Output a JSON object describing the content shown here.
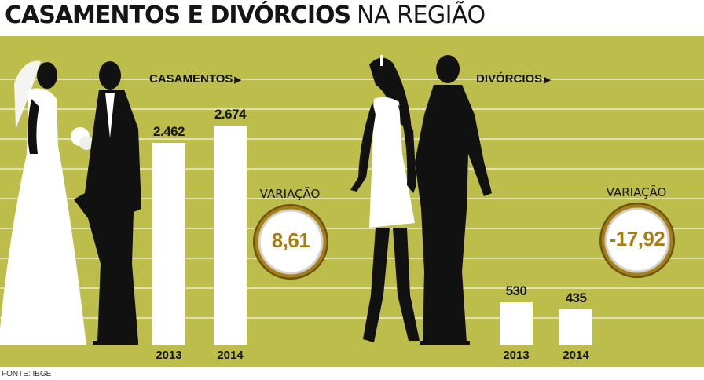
{
  "title": {
    "bold": "CASAMENTOS E DIVÓRCIOS",
    "light": "NA REGIÃO"
  },
  "source": "FONTE: IBGE",
  "colors": {
    "background": "#bcbd4b",
    "bar": "#ffffff",
    "variation_text": "#a67d14",
    "ring": "#a57f1a"
  },
  "chart_data": [
    {
      "type": "bar",
      "title": "CASAMENTOS",
      "categories": [
        "2013",
        "2014"
      ],
      "values": [
        2462,
        2674
      ],
      "value_labels": [
        "2.462",
        "2.674"
      ],
      "variation_label": "VARIAÇÃO",
      "variation": "8,61",
      "grid": true
    },
    {
      "type": "bar",
      "title": "DIVÓRCIOS",
      "categories": [
        "2013",
        "2014"
      ],
      "values": [
        530,
        435
      ],
      "value_labels": [
        "530",
        "435"
      ],
      "variation_label": "VARIAÇÃO",
      "variation": "-17,92",
      "grid": true
    }
  ]
}
